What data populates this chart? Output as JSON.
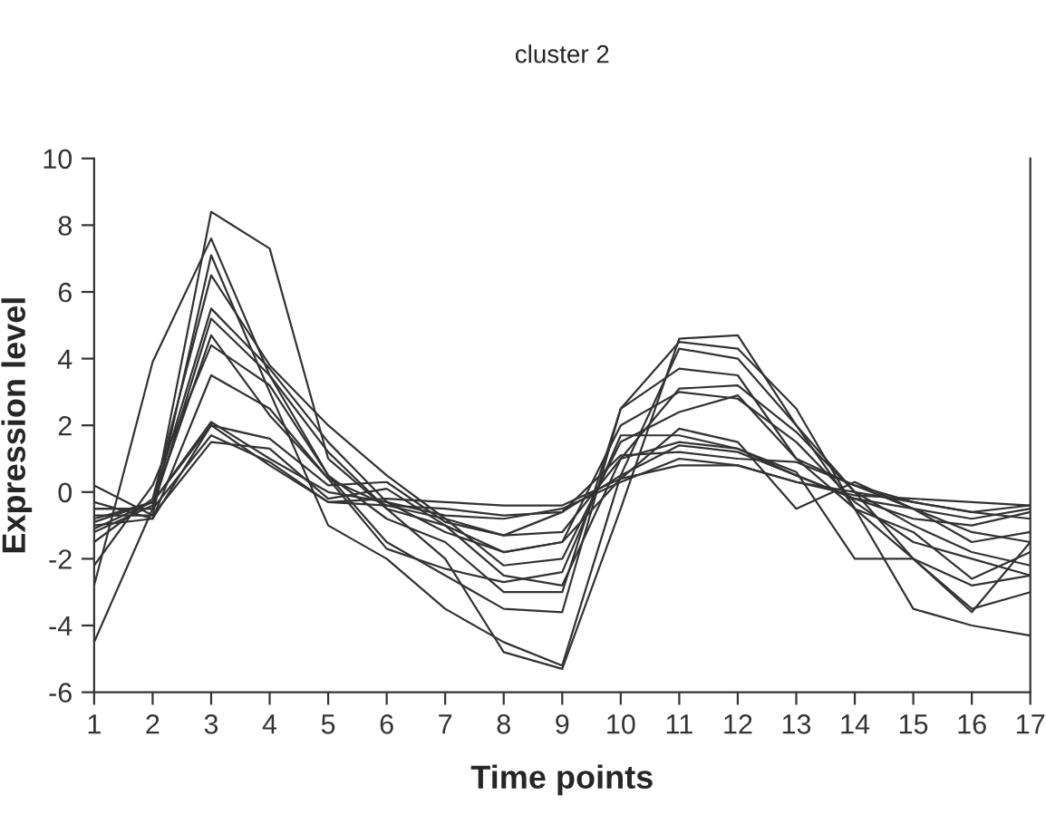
{
  "chart_data": {
    "type": "line",
    "title": "cluster 2",
    "xlabel": "Time points",
    "ylabel": "Expression level",
    "x": [
      1,
      2,
      3,
      4,
      5,
      6,
      7,
      8,
      9,
      10,
      11,
      12,
      13,
      14,
      15,
      16,
      17
    ],
    "xlim": [
      1,
      17
    ],
    "xticks": [
      1,
      2,
      3,
      4,
      5,
      6,
      7,
      8,
      9,
      10,
      11,
      12,
      13,
      14,
      15,
      16,
      17
    ],
    "ylim": [
      -6,
      10
    ],
    "yticks": [
      -6,
      -4,
      -2,
      0,
      2,
      4,
      6,
      8,
      10
    ],
    "grid": false,
    "legend": false,
    "marker": "none",
    "line_style": "solid",
    "series": [
      {
        "color": "#333333",
        "values": [
          -4.5,
          -0.5,
          8.4,
          7.3,
          1,
          -0.5,
          -2,
          -4.8,
          -5.3,
          -0.5,
          4.6,
          4.7,
          2,
          -0.5,
          -3.5,
          -4,
          -4.3
        ]
      },
      {
        "color": "#333333",
        "values": [
          -2.8,
          3.9,
          7.6,
          3.5,
          0.5,
          -1.5,
          -2.5,
          -3.5,
          -3.6,
          2.5,
          4.5,
          4.3,
          2.5,
          -0.5,
          -2,
          -3.5,
          -3
        ]
      },
      {
        "color": "#333333",
        "values": [
          -0.7,
          -0.7,
          7.1,
          3,
          -1,
          -2,
          -3.5,
          -4.5,
          -5.2,
          0.5,
          4.3,
          4,
          2,
          0,
          -2,
          -2.8,
          -2.5
        ]
      },
      {
        "color": "#333333",
        "values": [
          -1.1,
          -0.3,
          5.5,
          3.7,
          1.5,
          -0.3,
          -1.2,
          -1.8,
          -1.5,
          2,
          3.0,
          2.8,
          1.5,
          -0.3,
          -1.5,
          -2,
          -2.5
        ]
      },
      {
        "color": "#333333",
        "values": [
          -0.5,
          -0.5,
          5.2,
          3.5,
          1.2,
          -0.5,
          -1,
          -2.5,
          -2.8,
          1,
          3.1,
          3.2,
          1.8,
          0,
          -1,
          -1.8,
          -2.2
        ]
      },
      {
        "color": "#333333",
        "values": [
          -1.5,
          -0.2,
          6.5,
          3.8,
          2,
          0.5,
          -0.8,
          -2.2,
          -2.0,
          1.5,
          2.4,
          2.9,
          1.0,
          0.2,
          -0.5,
          -1.2,
          -1.5
        ]
      },
      {
        "color": "#333333",
        "values": [
          -2.2,
          0.2,
          4.4,
          3.2,
          0.5,
          -0.8,
          -1.5,
          -3,
          -3,
          2.5,
          3.7,
          3.5,
          1,
          -0.5,
          -1.2,
          -2.6,
          -1.8
        ]
      },
      {
        "color": "#333333",
        "values": [
          -0.3,
          -0.8,
          3.5,
          2.5,
          0.4,
          -0.4,
          -0.8,
          -1.3,
          -1.2,
          1.0,
          1.5,
          1.3,
          0.5,
          -0.2,
          -0.5,
          -0.8,
          -0.5
        ]
      },
      {
        "color": "#333333",
        "values": [
          -1,
          -0.8,
          2.0,
          0.8,
          -0.3,
          -0.4,
          -0.5,
          -0.7,
          -0.6,
          0.5,
          1.4,
          1.2,
          0.5,
          -0.2,
          -0.8,
          -1.0,
          -0.6
        ]
      },
      {
        "color": "#333333",
        "values": [
          -0.8,
          -0.3,
          2.1,
          1,
          0,
          -0.3,
          -0.7,
          -0.8,
          -0.5,
          0.3,
          1.0,
          0.8,
          0.3,
          0,
          -0.3,
          -0.6,
          -0.8
        ]
      },
      {
        "color": "#333333",
        "values": [
          -0.5,
          -0.5,
          1.7,
          0.9,
          -0.3,
          -0.2,
          -0.3,
          -0.4,
          -0.4,
          0.4,
          0.8,
          0.8,
          0.3,
          -0.1,
          -0.2,
          -0.3,
          -0.4
        ]
      },
      {
        "color": "#333333",
        "values": [
          0.2,
          -0.7,
          1.5,
          1.3,
          -0.2,
          0.1,
          -1,
          -1.8,
          -1.5,
          0.4,
          1.9,
          1.5,
          -0.5,
          0.3,
          -0.5,
          -1.5,
          -1.2
        ]
      },
      {
        "color": "#333333",
        "values": [
          -1.2,
          -0.4,
          4.7,
          2.3,
          0.4,
          -1.7,
          -2.3,
          -2.7,
          -2.4,
          1.7,
          1.7,
          1.3,
          0.6,
          -2,
          -2,
          -3.6,
          -1.5
        ]
      },
      {
        "color": "#333333",
        "values": [
          -0.9,
          -0.3,
          2.0,
          1.6,
          0.2,
          0.3,
          -0.9,
          -1.3,
          -0.6,
          1.1,
          1.2,
          1.0,
          0.9,
          0.2,
          -0.3,
          -0.6,
          -0.4
        ]
      }
    ]
  }
}
